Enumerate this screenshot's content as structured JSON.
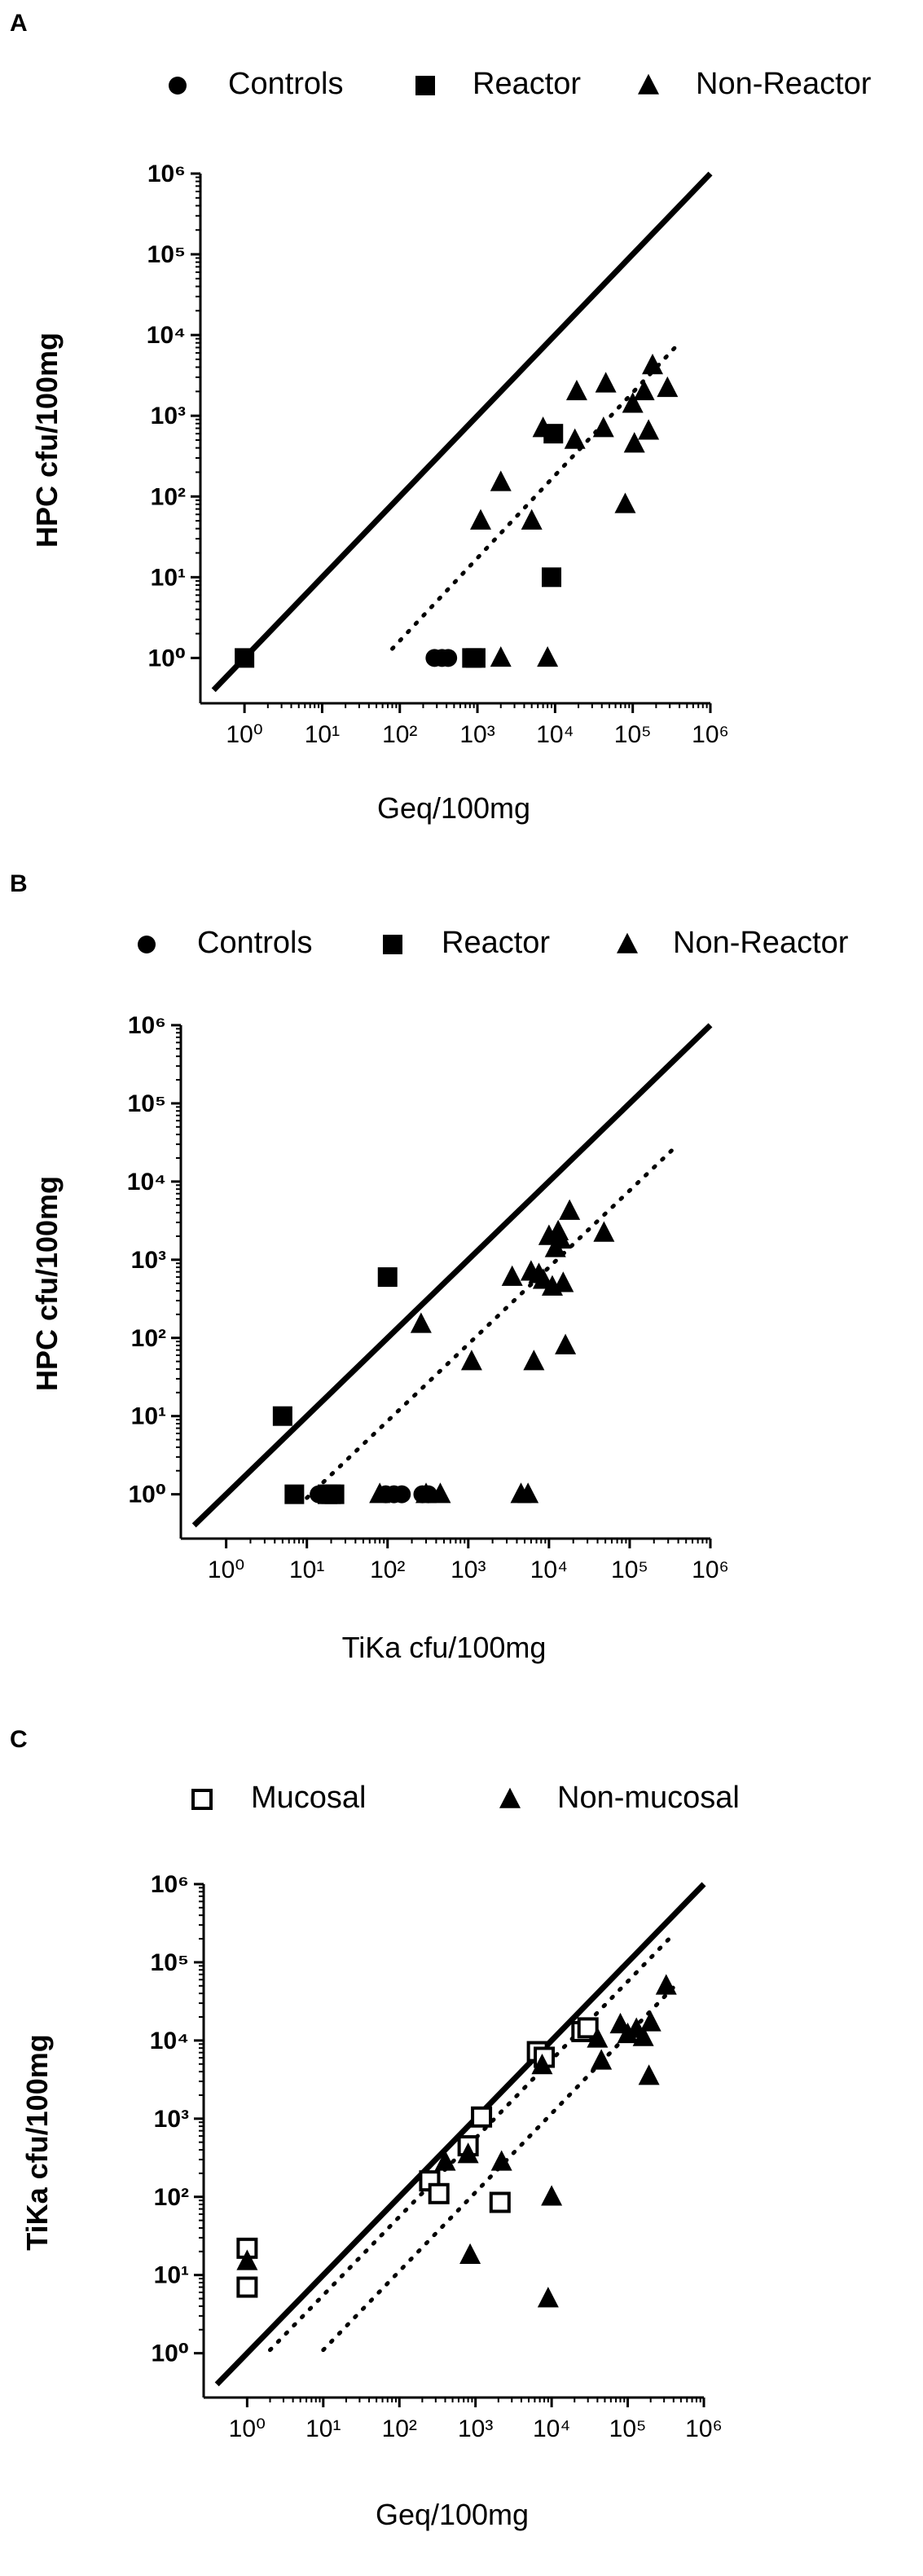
{
  "figure": {
    "panels": [
      "A",
      "B",
      "C"
    ]
  },
  "chart_data": [
    {
      "panel": "A",
      "type": "scatter",
      "title": "",
      "xlabel": "Geq/100mg",
      "ylabel": "HPC cfu/100mg",
      "xscale": "log",
      "yscale": "log",
      "xlim": [
        1,
        1000000
      ],
      "ylim": [
        1,
        1000000
      ],
      "x_ticks": [
        1,
        10,
        100,
        1000,
        10000,
        100000,
        1000000
      ],
      "y_ticks": [
        1,
        10,
        100,
        1000,
        10000,
        100000,
        1000000
      ],
      "legend_position": "top",
      "grid": false,
      "series": [
        {
          "name": "Controls",
          "marker": "circle-filled",
          "points": [
            [
              280,
              1
            ],
            [
              350,
              1
            ],
            [
              420,
              1
            ]
          ]
        },
        {
          "name": "Reactor",
          "marker": "square-filled",
          "points": [
            [
              1,
              1
            ],
            [
              850,
              1
            ],
            [
              950,
              1
            ],
            [
              9000,
              10
            ],
            [
              9500,
              600
            ]
          ]
        },
        {
          "name": "Non-Reactor",
          "marker": "triangle-filled",
          "points": [
            [
              1100,
              50
            ],
            [
              2000,
              150
            ],
            [
              2000,
              1
            ],
            [
              5000,
              50
            ],
            [
              7000,
              700
            ],
            [
              8000,
              1
            ],
            [
              18000,
              500
            ],
            [
              19000,
              2000
            ],
            [
              42000,
              700
            ],
            [
              45000,
              2500
            ],
            [
              80000,
              80
            ],
            [
              100000,
              1400
            ],
            [
              105000,
              450
            ],
            [
              140000,
              2000
            ],
            [
              160000,
              650
            ],
            [
              180000,
              4200
            ],
            [
              280000,
              2200
            ]
          ]
        }
      ],
      "lines": [
        {
          "style": "solid",
          "from": [
            0.4,
            0.4
          ],
          "to": [
            1000000,
            1000000
          ]
        },
        {
          "style": "dotted",
          "from": [
            80,
            1.3
          ],
          "to": [
            350000,
            7000
          ]
        }
      ]
    },
    {
      "panel": "B",
      "type": "scatter",
      "title": "",
      "xlabel": "TiKa cfu/100mg",
      "ylabel": "HPC cfu/100mg",
      "xscale": "log",
      "yscale": "log",
      "xlim": [
        1,
        1000000
      ],
      "ylim": [
        1,
        1000000
      ],
      "x_ticks": [
        1,
        10,
        100,
        1000,
        10000,
        100000,
        1000000
      ],
      "y_ticks": [
        1,
        10,
        100,
        1000,
        10000,
        100000,
        1000000
      ],
      "legend_position": "top",
      "grid": false,
      "series": [
        {
          "name": "Controls",
          "marker": "circle-filled",
          "points": [
            [
              14,
              1
            ],
            [
              17,
              1
            ],
            [
              95,
              1
            ],
            [
              120,
              1
            ],
            [
              150,
              1
            ],
            [
              270,
              1
            ],
            [
              320,
              1
            ]
          ]
        },
        {
          "name": "Reactor",
          "marker": "square-filled",
          "points": [
            [
              5,
              10
            ],
            [
              7,
              1
            ],
            [
              18,
              1
            ],
            [
              20,
              1
            ],
            [
              22,
              1
            ],
            [
              100,
              600
            ]
          ]
        },
        {
          "name": "Non-Reactor",
          "marker": "triangle-filled",
          "points": [
            [
              80,
              1
            ],
            [
              260,
              150
            ],
            [
              300,
              1
            ],
            [
              450,
              1
            ],
            [
              1100,
              50
            ],
            [
              3500,
              600
            ],
            [
              4500,
              1
            ],
            [
              5500,
              1
            ],
            [
              6000,
              700
            ],
            [
              6500,
              50
            ],
            [
              7500,
              650
            ],
            [
              8500,
              550
            ],
            [
              10000,
              2000
            ],
            [
              11000,
              450
            ],
            [
              12000,
              1400
            ],
            [
              13000,
              2300
            ],
            [
              14000,
              1800
            ],
            [
              15000,
              500
            ],
            [
              16000,
              80
            ],
            [
              18000,
              4200
            ],
            [
              48000,
              2200
            ]
          ]
        }
      ],
      "lines": [
        {
          "style": "solid",
          "from": [
            0.4,
            0.4
          ],
          "to": [
            1000000,
            1000000
          ]
        },
        {
          "style": "dotted",
          "from": [
            10,
            0.9
          ],
          "to": [
            400000,
            30000
          ]
        }
      ]
    },
    {
      "panel": "C",
      "type": "scatter",
      "title": "",
      "xlabel": "Geq/100mg",
      "ylabel": "TiKa cfu/100mg",
      "xscale": "log",
      "yscale": "log",
      "xlim": [
        1,
        1000000
      ],
      "ylim": [
        1,
        1000000
      ],
      "x_ticks": [
        1,
        10,
        100,
        1000,
        10000,
        100000,
        1000000
      ],
      "y_ticks": [
        1,
        10,
        100,
        1000,
        10000,
        100000,
        1000000
      ],
      "legend_position": "top",
      "grid": false,
      "series": [
        {
          "name": "Mucosal",
          "marker": "square-open",
          "points": [
            [
              1,
              22
            ],
            [
              1,
              7
            ],
            [
              250,
              160
            ],
            [
              330,
              110
            ],
            [
              800,
              450
            ],
            [
              1200,
              1050
            ],
            [
              2100,
              85
            ],
            [
              6500,
              7200
            ],
            [
              8000,
              6100
            ],
            [
              25000,
              13000
            ],
            [
              30000,
              14500
            ]
          ]
        },
        {
          "name": "Non-mucosal",
          "marker": "triangle-filled",
          "points": [
            [
              1,
              15
            ],
            [
              400,
              280
            ],
            [
              800,
              350
            ],
            [
              850,
              18
            ],
            [
              2200,
              280
            ],
            [
              7500,
              4800
            ],
            [
              9000,
              5
            ],
            [
              10000,
              100
            ],
            [
              40000,
              10500
            ],
            [
              45000,
              5500
            ],
            [
              80000,
              16000
            ],
            [
              100000,
              12000
            ],
            [
              130000,
              14000
            ],
            [
              160000,
              11000
            ],
            [
              190000,
              3500
            ],
            [
              200000,
              17000
            ],
            [
              320000,
              50000
            ]
          ]
        }
      ],
      "lines": [
        {
          "style": "solid",
          "from": [
            0.4,
            0.4
          ],
          "to": [
            1000000,
            1000000
          ]
        },
        {
          "style": "dotted",
          "from": [
            2,
            1.1
          ],
          "to": [
            350000,
            200000
          ]
        },
        {
          "style": "dotted",
          "from": [
            10,
            1.1
          ],
          "to": [
            400000,
            48000
          ]
        }
      ]
    }
  ]
}
